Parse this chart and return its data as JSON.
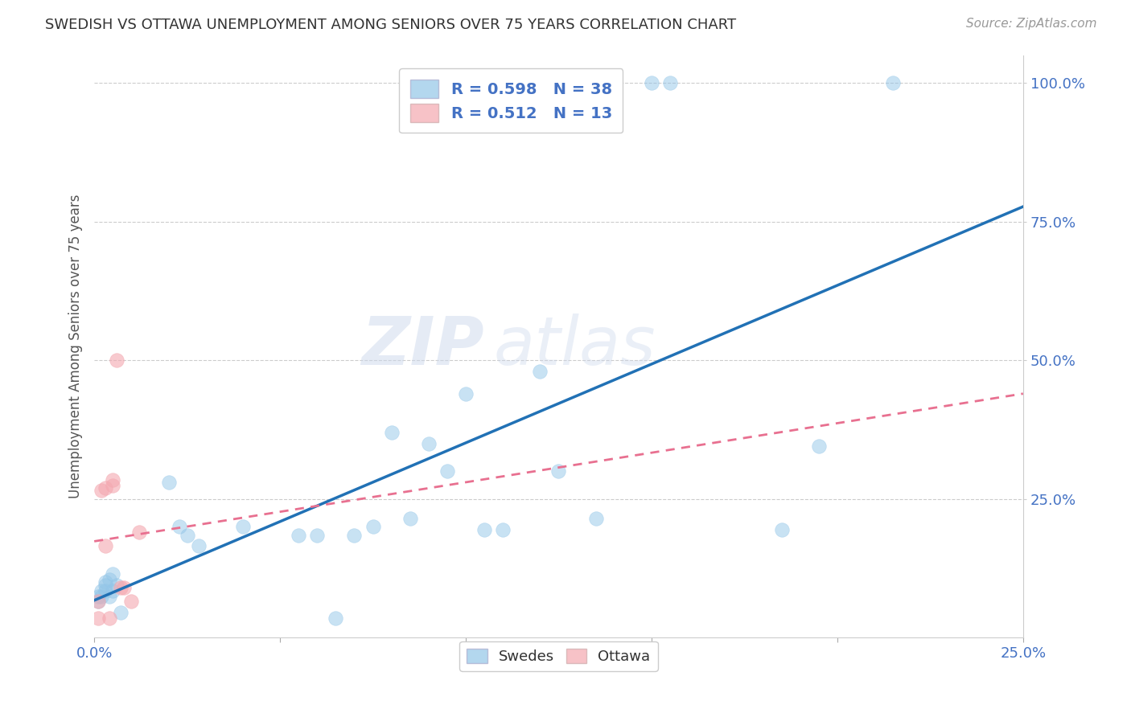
{
  "title": "SWEDISH VS OTTAWA UNEMPLOYMENT AMONG SENIORS OVER 75 YEARS CORRELATION CHART",
  "source": "Source: ZipAtlas.com",
  "ylabel": "Unemployment Among Seniors over 75 years",
  "xlim": [
    0.0,
    0.25
  ],
  "ylim": [
    0.0,
    1.05
  ],
  "xticks": [
    0.0,
    0.05,
    0.1,
    0.15,
    0.2,
    0.25
  ],
  "xticklabels": [
    "0.0%",
    "",
    "",
    "",
    "",
    "25.0%"
  ],
  "yticks": [
    0.25,
    0.5,
    0.75,
    1.0
  ],
  "yticklabels": [
    "25.0%",
    "50.0%",
    "75.0%",
    "100.0%"
  ],
  "swedes_R": 0.598,
  "swedes_N": 38,
  "ottawa_R": 0.512,
  "ottawa_N": 13,
  "swedes_color": "#93c6e8",
  "ottawa_color": "#f4a8b0",
  "regression_blue_color": "#2171b5",
  "regression_pink_color": "#e87090",
  "watermark_zip": "ZIP",
  "watermark_atlas": "atlas",
  "swedes_x": [
    0.001,
    0.001,
    0.002,
    0.002,
    0.003,
    0.003,
    0.003,
    0.004,
    0.004,
    0.005,
    0.005,
    0.006,
    0.007,
    0.02,
    0.023,
    0.025,
    0.028,
    0.04,
    0.055,
    0.06,
    0.065,
    0.07,
    0.075,
    0.08,
    0.085,
    0.09,
    0.095,
    0.1,
    0.105,
    0.11,
    0.12,
    0.125,
    0.135,
    0.15,
    0.155,
    0.185,
    0.195,
    0.215
  ],
  "swedes_y": [
    0.065,
    0.075,
    0.075,
    0.085,
    0.085,
    0.095,
    0.1,
    0.075,
    0.105,
    0.085,
    0.115,
    0.095,
    0.045,
    0.28,
    0.2,
    0.185,
    0.165,
    0.2,
    0.185,
    0.185,
    0.035,
    0.185,
    0.2,
    0.37,
    0.215,
    0.35,
    0.3,
    0.44,
    0.195,
    0.195,
    0.48,
    0.3,
    0.215,
    1.0,
    1.0,
    0.195,
    0.345,
    1.0
  ],
  "ottawa_x": [
    0.001,
    0.001,
    0.002,
    0.003,
    0.003,
    0.004,
    0.005,
    0.005,
    0.006,
    0.007,
    0.008,
    0.01,
    0.012
  ],
  "ottawa_y": [
    0.035,
    0.065,
    0.265,
    0.27,
    0.165,
    0.035,
    0.275,
    0.285,
    0.5,
    0.09,
    0.09,
    0.065,
    0.19
  ],
  "title_fontsize": 13,
  "source_fontsize": 11,
  "tick_fontsize": 13,
  "ylabel_fontsize": 12,
  "tick_color": "#4472c4",
  "ylabel_color": "#555555",
  "grid_color": "#cccccc",
  "scatter_size": 160
}
